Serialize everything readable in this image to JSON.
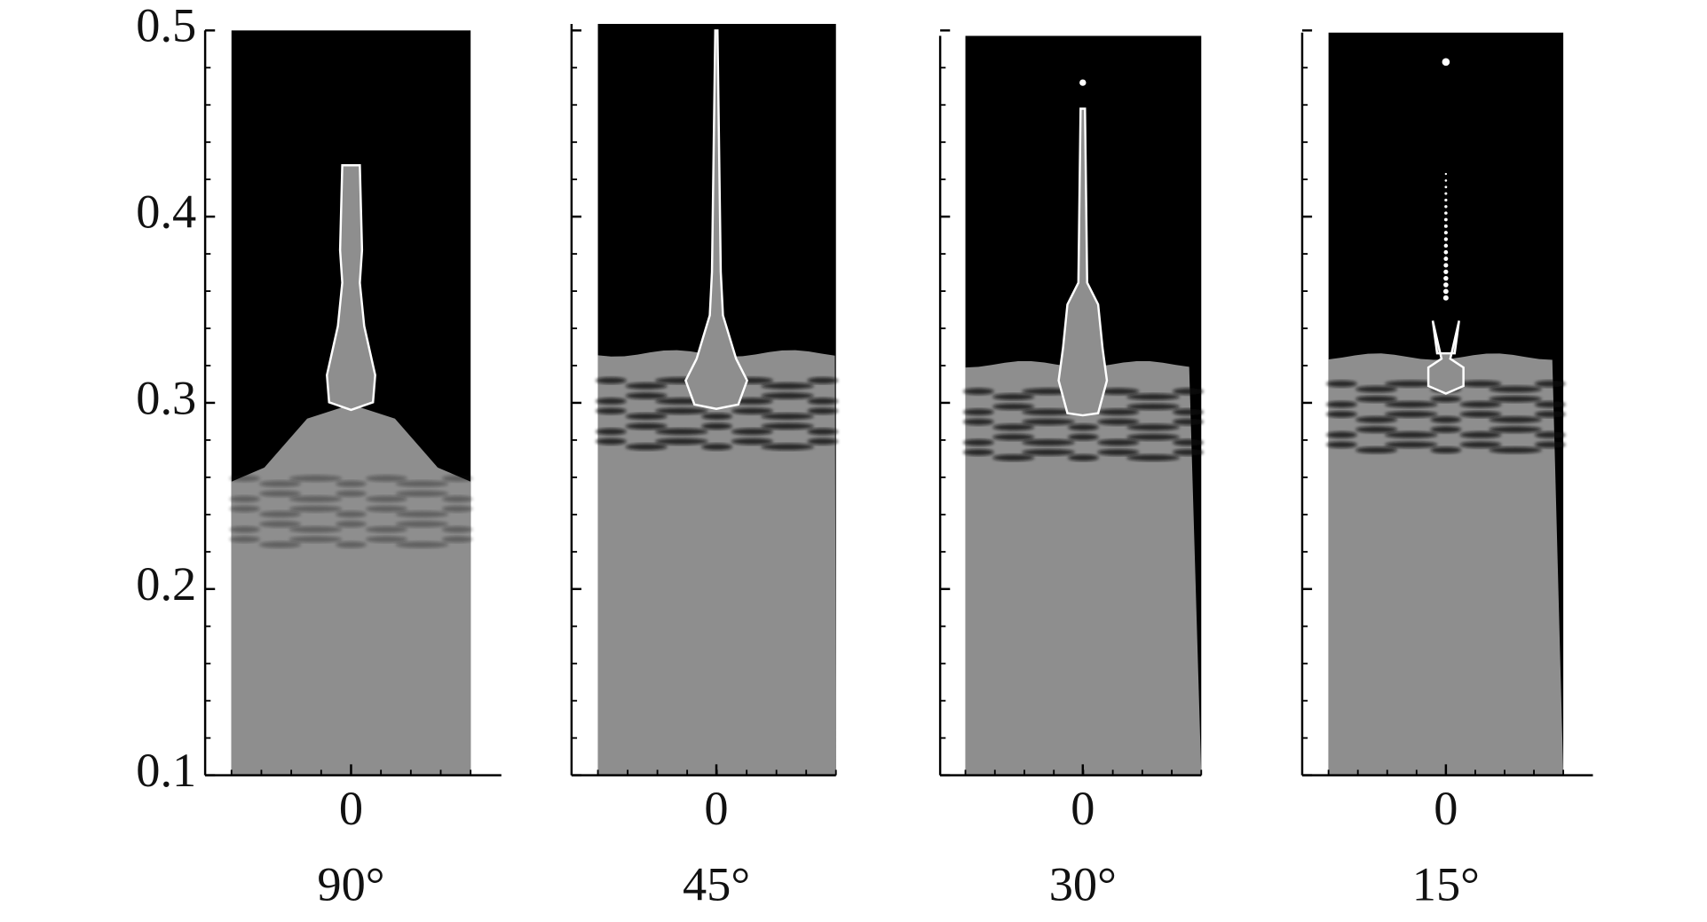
{
  "y_axis": {
    "lim": [
      0.1,
      0.5
    ],
    "ticks": [
      0.1,
      0.2,
      0.3,
      0.4,
      0.5
    ]
  },
  "panels": [
    {
      "x_tick": 0,
      "label": "90°"
    },
    {
      "x_tick": 0,
      "label": "45°"
    },
    {
      "x_tick": 0,
      "label": "30°"
    },
    {
      "x_tick": 0,
      "label": "15°"
    }
  ]
}
